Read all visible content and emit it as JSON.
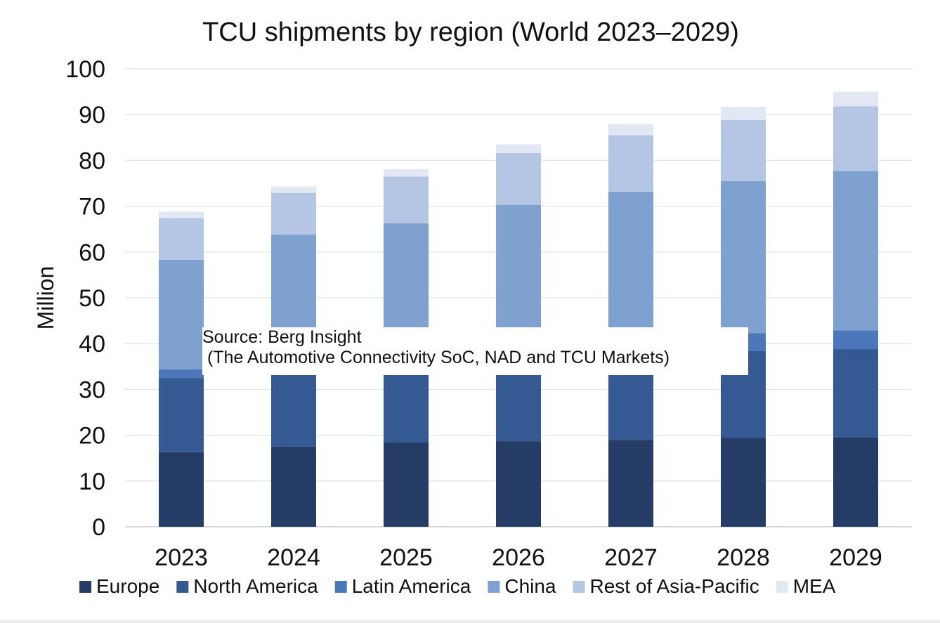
{
  "chart_data": {
    "type": "bar",
    "stacked": true,
    "title": "TCU shipments by region (World 2023–2029)",
    "xlabel": "",
    "ylabel": "Million",
    "ylim": [
      0,
      100
    ],
    "yticks": [
      0,
      10,
      20,
      30,
      40,
      50,
      60,
      70,
      80,
      90,
      100
    ],
    "categories": [
      "2023",
      "2024",
      "2025",
      "2026",
      "2027",
      "2028",
      "2029"
    ],
    "series": [
      {
        "name": "Europe",
        "color": "#253d66",
        "values": [
          16.3,
          17.5,
          18.4,
          18.7,
          19.0,
          19.4,
          19.6
        ]
      },
      {
        "name": "North America",
        "color": "#355a93",
        "values": [
          16.2,
          16.5,
          16.8,
          17.5,
          18.4,
          19.0,
          19.2
        ]
      },
      {
        "name": "Latin America",
        "color": "#4c77ba",
        "values": [
          1.9,
          2.6,
          3.2,
          3.6,
          3.8,
          3.9,
          4.1
        ]
      },
      {
        "name": "China",
        "color": "#7fa1d0",
        "values": [
          23.9,
          27.2,
          27.9,
          30.5,
          32.0,
          33.2,
          34.8
        ]
      },
      {
        "name": "Rest of Asia-Pacific",
        "color": "#b4c6e3",
        "values": [
          9.1,
          9.1,
          10.2,
          11.3,
          12.3,
          13.3,
          14.1
        ]
      },
      {
        "name": "MEA",
        "color": "#e1e8f4",
        "values": [
          1.4,
          1.4,
          1.6,
          1.9,
          2.4,
          2.9,
          3.2
        ]
      }
    ],
    "grid": true,
    "legend_position": "bottom"
  },
  "source": {
    "line1": "Source: Berg Insight",
    "line2": " (The Automotive Connectivity SoC, NAD and TCU Markets)"
  }
}
